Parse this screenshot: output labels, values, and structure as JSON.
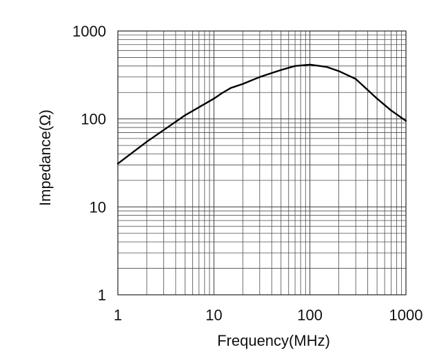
{
  "chart_data": {
    "type": "line",
    "xlabel": "Frequency(MHz)",
    "ylabel": "Impedance(Ω)",
    "x_scale": "log",
    "y_scale": "log",
    "xlim": [
      1,
      1000
    ],
    "ylim": [
      1,
      1000
    ],
    "x_ticks": [
      "1",
      "10",
      "100",
      "1000"
    ],
    "y_ticks": [
      "1",
      "10",
      "100",
      "1000"
    ],
    "grid": true,
    "series": [
      {
        "x": [
          1,
          2,
          5,
          10,
          12,
          15,
          20,
          30,
          50,
          70,
          100,
          150,
          200,
          300,
          500,
          700,
          1000
        ],
        "y": [
          31,
          55,
          110,
          170,
          195,
          225,
          250,
          300,
          360,
          400,
          415,
          390,
          350,
          285,
          170,
          125,
          95
        ]
      }
    ]
  }
}
